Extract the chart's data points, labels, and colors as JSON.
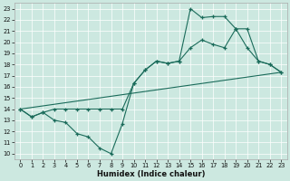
{
  "xlabel": "Humidex (Indice chaleur)",
  "bg_color": "#cce8e0",
  "line_color": "#1a6b5a",
  "grid_color": "#ffffff",
  "xlim": [
    -0.5,
    23.5
  ],
  "ylim": [
    9.5,
    23.5
  ],
  "xticks": [
    0,
    1,
    2,
    3,
    4,
    5,
    6,
    7,
    8,
    9,
    10,
    11,
    12,
    13,
    14,
    15,
    16,
    17,
    18,
    19,
    20,
    21,
    22,
    23
  ],
  "yticks": [
    10,
    11,
    12,
    13,
    14,
    15,
    16,
    17,
    18,
    19,
    20,
    21,
    22,
    23
  ],
  "line1_x": [
    0,
    1,
    2,
    3,
    4,
    5,
    6,
    7,
    8,
    9,
    10,
    11,
    12,
    13,
    14,
    15,
    16,
    17,
    18,
    19,
    20,
    21,
    22,
    23
  ],
  "line1_y": [
    14.0,
    13.3,
    13.7,
    13.0,
    12.8,
    11.8,
    11.5,
    10.5,
    10.0,
    12.7,
    16.3,
    17.5,
    18.3,
    18.1,
    18.3,
    19.5,
    20.2,
    19.8,
    19.5,
    21.2,
    19.5,
    18.3,
    18.0,
    17.3
  ],
  "line2_x": [
    0,
    1,
    2,
    3,
    4,
    5,
    6,
    7,
    8,
    9,
    10,
    11,
    12,
    13,
    14,
    15,
    16,
    17,
    18,
    19,
    20,
    21,
    22,
    23
  ],
  "line2_y": [
    14.0,
    13.3,
    13.7,
    14.0,
    14.0,
    14.0,
    14.0,
    14.0,
    14.0,
    14.0,
    16.3,
    17.5,
    18.3,
    18.1,
    18.3,
    23.0,
    22.2,
    22.3,
    22.3,
    21.2,
    21.2,
    18.3,
    18.0,
    17.3
  ],
  "line3_x": [
    0,
    23
  ],
  "line3_y": [
    14.0,
    17.3
  ],
  "xlabel_fontsize": 6.0,
  "tick_fontsize": 4.8
}
